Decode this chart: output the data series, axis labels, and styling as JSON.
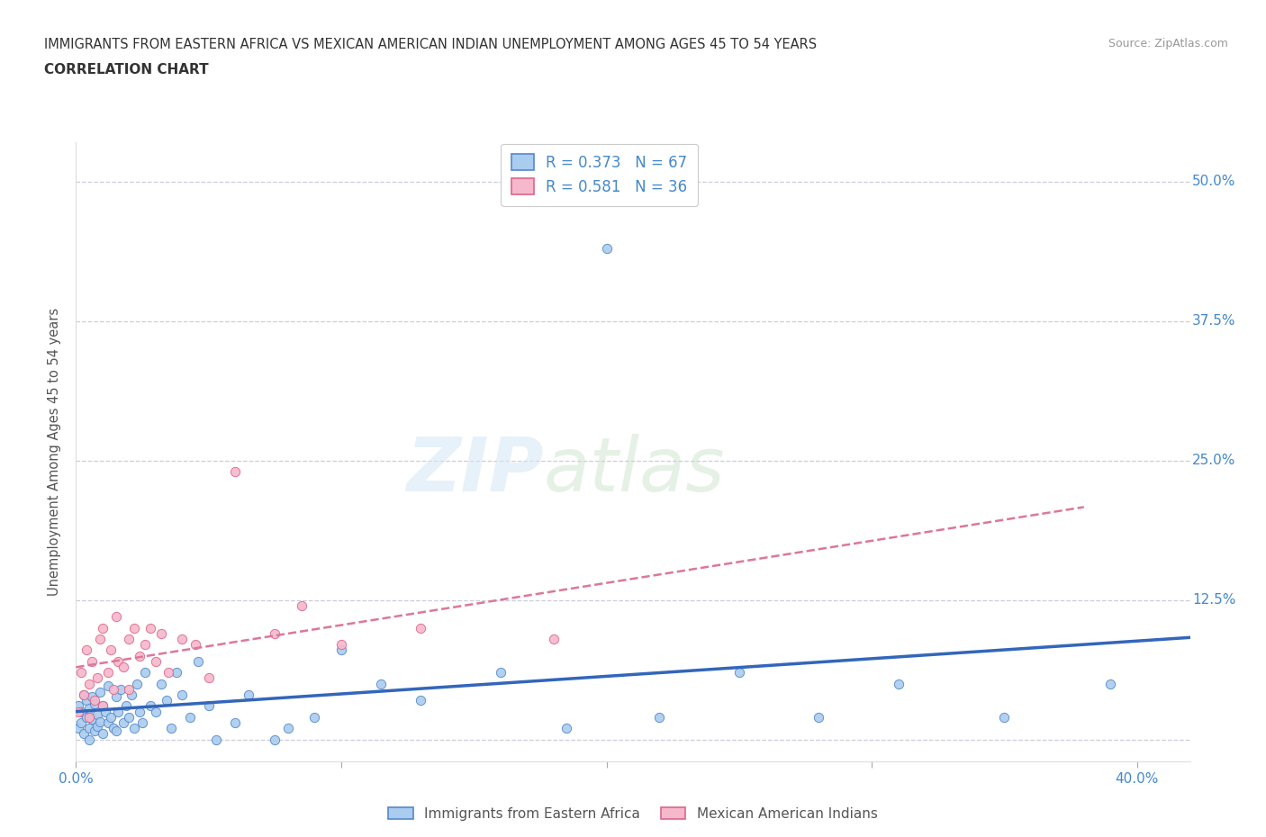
{
  "title_line1": "IMMIGRANTS FROM EASTERN AFRICA VS MEXICAN AMERICAN INDIAN UNEMPLOYMENT AMONG AGES 45 TO 54 YEARS",
  "title_line2": "CORRELATION CHART",
  "source_text": "Source: ZipAtlas.com",
  "ylabel": "Unemployment Among Ages 45 to 54 years",
  "xlim": [
    0.0,
    0.42
  ],
  "ylim": [
    -0.02,
    0.535
  ],
  "R_blue": 0.373,
  "N_blue": 67,
  "R_pink": 0.581,
  "N_pink": 36,
  "legend_label_blue": "Immigrants from Eastern Africa",
  "legend_label_pink": "Mexican American Indians",
  "scatter_blue_x": [
    0.001,
    0.001,
    0.002,
    0.002,
    0.003,
    0.003,
    0.004,
    0.004,
    0.005,
    0.005,
    0.005,
    0.006,
    0.006,
    0.007,
    0.007,
    0.008,
    0.008,
    0.009,
    0.009,
    0.01,
    0.01,
    0.011,
    0.012,
    0.012,
    0.013,
    0.014,
    0.015,
    0.015,
    0.016,
    0.017,
    0.018,
    0.019,
    0.02,
    0.021,
    0.022,
    0.023,
    0.024,
    0.025,
    0.026,
    0.028,
    0.03,
    0.032,
    0.034,
    0.036,
    0.038,
    0.04,
    0.043,
    0.046,
    0.05,
    0.053,
    0.06,
    0.065,
    0.075,
    0.08,
    0.09,
    0.1,
    0.115,
    0.13,
    0.16,
    0.185,
    0.2,
    0.22,
    0.25,
    0.28,
    0.31,
    0.35,
    0.39
  ],
  "scatter_blue_y": [
    0.01,
    0.03,
    0.015,
    0.025,
    0.005,
    0.04,
    0.02,
    0.035,
    0.01,
    0.028,
    0.0,
    0.018,
    0.038,
    0.008,
    0.032,
    0.012,
    0.022,
    0.016,
    0.042,
    0.005,
    0.03,
    0.025,
    0.015,
    0.048,
    0.02,
    0.01,
    0.038,
    0.008,
    0.025,
    0.045,
    0.015,
    0.03,
    0.02,
    0.04,
    0.01,
    0.05,
    0.025,
    0.015,
    0.06,
    0.03,
    0.025,
    0.05,
    0.035,
    0.01,
    0.06,
    0.04,
    0.02,
    0.07,
    0.03,
    0.0,
    0.015,
    0.04,
    0.0,
    0.01,
    0.02,
    0.08,
    0.05,
    0.035,
    0.06,
    0.01,
    0.44,
    0.02,
    0.06,
    0.02,
    0.05,
    0.02,
    0.05
  ],
  "scatter_pink_x": [
    0.001,
    0.002,
    0.003,
    0.004,
    0.005,
    0.005,
    0.006,
    0.007,
    0.008,
    0.009,
    0.01,
    0.01,
    0.012,
    0.013,
    0.014,
    0.015,
    0.016,
    0.018,
    0.02,
    0.02,
    0.022,
    0.024,
    0.026,
    0.028,
    0.03,
    0.032,
    0.035,
    0.04,
    0.045,
    0.05,
    0.06,
    0.075,
    0.085,
    0.1,
    0.13,
    0.18
  ],
  "scatter_pink_y": [
    0.025,
    0.06,
    0.04,
    0.08,
    0.02,
    0.05,
    0.07,
    0.035,
    0.055,
    0.09,
    0.03,
    0.1,
    0.06,
    0.08,
    0.045,
    0.11,
    0.07,
    0.065,
    0.09,
    0.045,
    0.1,
    0.075,
    0.085,
    0.1,
    0.07,
    0.095,
    0.06,
    0.09,
    0.085,
    0.055,
    0.24,
    0.095,
    0.12,
    0.085,
    0.1,
    0.09
  ],
  "blue_scatter_color": "#aaccee",
  "blue_edge_color": "#5588cc",
  "pink_scatter_color": "#f5b8cc",
  "pink_edge_color": "#dd6688",
  "blue_line_color": "#3366bb",
  "pink_line_color": "#dd7799",
  "grid_color": "#ccccdd",
  "bg_color": "#ffffff",
  "title_color": "#333333",
  "tick_color": "#4488cc",
  "ylabel_color": "#555555"
}
